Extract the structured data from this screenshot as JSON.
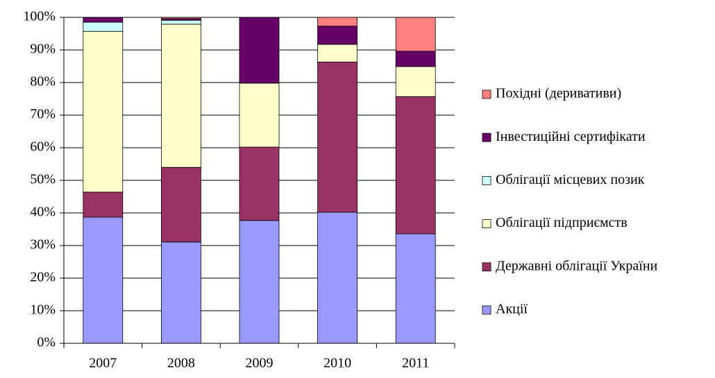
{
  "chart_data": {
    "type": "stacked_bar",
    "categories": [
      "2007",
      "2008",
      "2009",
      "2010",
      "2011"
    ],
    "series": [
      {
        "name": "Акції",
        "color": "#9999ff",
        "values": [
          38.7,
          31.1,
          37.7,
          40.2,
          33.6
        ]
      },
      {
        "name": "Державні облігації України",
        "color": "#993366",
        "values": [
          7.7,
          22.9,
          22.5,
          46.1,
          42.1
        ]
      },
      {
        "name": "Облігації підприємств",
        "color": "#ffffcc",
        "values": [
          49.3,
          43.9,
          19.6,
          5.4,
          9.2
        ]
      },
      {
        "name": "Облігації місцевих позик",
        "color": "#ccffff",
        "values": [
          2.8,
          1.2,
          0,
          0,
          0
        ]
      },
      {
        "name": "Інвестиційні сертифікати",
        "color": "#660066",
        "values": [
          1.5,
          0.5,
          20.2,
          5.6,
          4.7
        ]
      },
      {
        "name": "Похідні (деривативи)",
        "color": "#ff8080",
        "values": [
          0,
          0.4,
          0,
          2.7,
          10.4
        ]
      }
    ],
    "ylim": [
      0,
      100
    ],
    "yticks": [
      {
        "value": 0,
        "label": "0%"
      },
      {
        "value": 10,
        "label": "10%"
      },
      {
        "value": 20,
        "label": "20%"
      },
      {
        "value": 30,
        "label": "30%"
      },
      {
        "value": 40,
        "label": "40%"
      },
      {
        "value": 50,
        "label": "50%"
      },
      {
        "value": 60,
        "label": "60%"
      },
      {
        "value": 70,
        "label": "70%"
      },
      {
        "value": 80,
        "label": "80%"
      },
      {
        "value": 90,
        "label": "90%"
      },
      {
        "value": 100,
        "label": "100%"
      }
    ],
    "grid": true,
    "legend": "right"
  }
}
